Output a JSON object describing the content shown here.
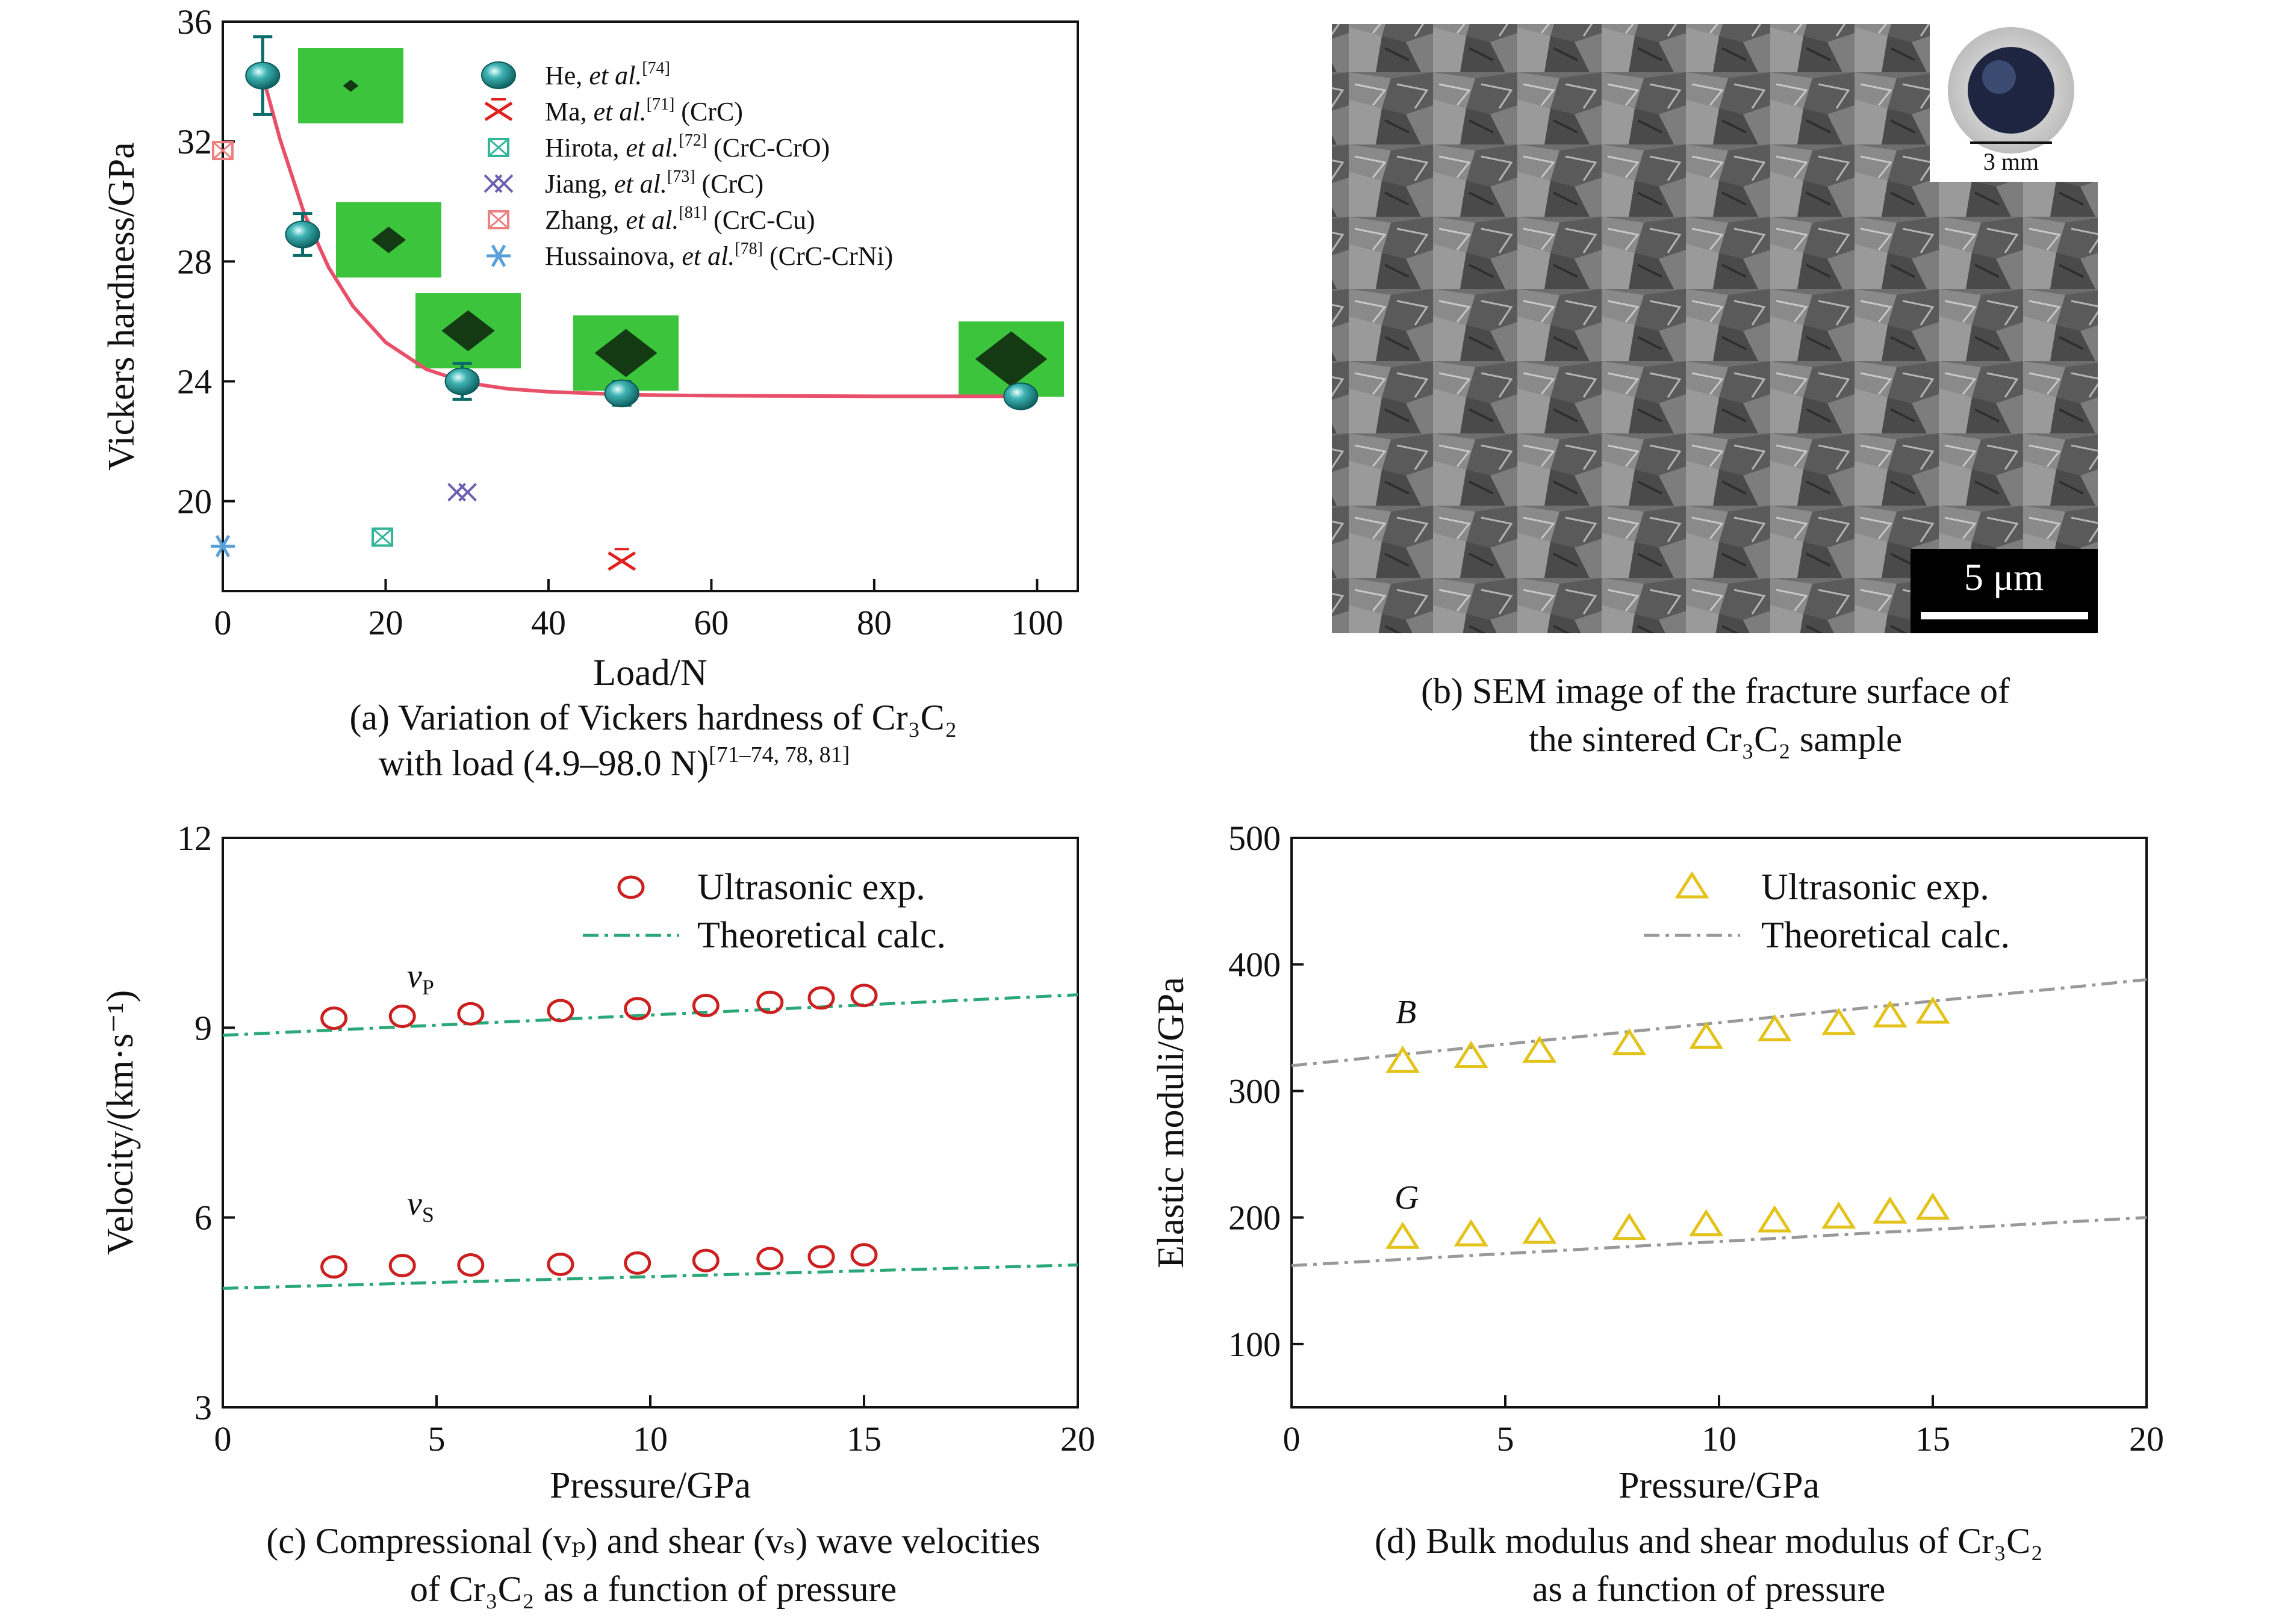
{
  "panel_a": {
    "caption": [
      "(a) Variation of Vickers hardness of Cr₃C₂",
      "with load (4.9–98.0 N)"
    ],
    "caption_ref": "[71–74, 78, 81]",
    "legend": [
      {
        "name": "He, ",
        "italic": "et al.",
        "ref": "[74]",
        "suffix": ""
      },
      {
        "name": "Ma, ",
        "italic": "et al.",
        "ref": "[71]",
        "suffix": " (CrC)"
      },
      {
        "name": "Hirota, ",
        "italic": "et al.",
        "ref": "[72]",
        "suffix": " (CrC-CrO)"
      },
      {
        "name": "Jiang, ",
        "italic": "et al.",
        "ref": "[73]",
        "suffix": " (CrC)"
      },
      {
        "name": "Zhang, ",
        "italic": "et al.",
        "ref": "[81]",
        "suffix": " (CrC-Cu)"
      },
      {
        "name": "Hussainova, ",
        "italic": "et al.",
        "ref": "[78]",
        "suffix": " (CrC-CrNi)"
      }
    ]
  },
  "panel_b": {
    "caption": [
      "(b) SEM image of the fracture surface of",
      "the sintered Cr₃C₂ sample"
    ],
    "scale_bar": "5 μm",
    "inset_label": "3 mm"
  },
  "panel_c": {
    "caption": [
      "(c) Compressional (vₚ) and shear (vₛ) wave velocities",
      "of Cr₃C₂ as a function of pressure"
    ],
    "legend": [
      "Ultrasonic exp.",
      "Theoretical calc."
    ],
    "label_vp": "vP",
    "label_vs": "vS"
  },
  "panel_d": {
    "caption": [
      "(d) Bulk modulus and shear modulus of Cr₃C₂",
      "as a function of pressure"
    ],
    "legend": [
      "Ultrasonic exp.",
      "Theoretical calc."
    ],
    "label_b": "B",
    "label_g": "G"
  },
  "chart_data": [
    {
      "type": "scatter",
      "xlabel": "Load/N",
      "ylabel": "Vickers hardness/GPa",
      "xlim": [
        0,
        105
      ],
      "ylim": [
        17,
        36
      ],
      "xticks": [
        0,
        20,
        40,
        60,
        80,
        100
      ],
      "yticks": [
        20,
        24,
        28,
        32,
        36
      ],
      "series": [
        {
          "name": "He, et al.[74]",
          "color": "#1a8c8c",
          "marker": "sphere",
          "x": [
            4.9,
            9.8,
            29.4,
            49.0,
            98.0
          ],
          "y": [
            34.2,
            28.9,
            24.0,
            23.6,
            23.5
          ],
          "err": [
            1.3,
            0.7,
            0.6,
            0.4,
            0.2
          ]
        },
        {
          "name": "Ma, et al.[71] (CrC)",
          "color": "#e0201e",
          "marker": "x",
          "x": [
            49.0
          ],
          "y": [
            18.0
          ]
        },
        {
          "name": "Hirota, et al.[72] (CrC-CrO)",
          "color": "#33b59a",
          "marker": "boxx",
          "x": [
            19.6
          ],
          "y": [
            18.8
          ]
        },
        {
          "name": "Jiang, et al.[73] (CrC)",
          "color": "#6a5fb0",
          "marker": "xx",
          "x": [
            29.4
          ],
          "y": [
            20.3
          ]
        },
        {
          "name": "Zhang, et al.[81] (CrC-Cu)",
          "color": "#ee7f7f",
          "marker": "boxx",
          "x": [
            0.0
          ],
          "y": [
            31.7
          ]
        },
        {
          "name": "Hussainova, et al.[78] (CrC-CrNi)",
          "color": "#5aa0d8",
          "marker": "star",
          "x": [
            0.0
          ],
          "y": [
            18.5
          ]
        }
      ],
      "fit": {
        "color": "#e8506a",
        "x": [
          4.9,
          7,
          10,
          13,
          16,
          20,
          25,
          30,
          35,
          40,
          50,
          60,
          70,
          80,
          90,
          98
        ],
        "y": [
          34.2,
          32.1,
          29.6,
          27.8,
          26.5,
          25.3,
          24.4,
          23.95,
          23.75,
          23.65,
          23.55,
          23.52,
          23.51,
          23.5,
          23.5,
          23.5
        ]
      }
    },
    {
      "type": "scatter",
      "xlabel": "Pressure/GPa",
      "ylabel": "Velocity/(km·s⁻¹)",
      "xlim": [
        0,
        20
      ],
      "ylim": [
        3,
        12
      ],
      "xticks": [
        0,
        5,
        10,
        15,
        20
      ],
      "yticks": [
        3,
        6,
        9,
        12
      ],
      "series": [
        {
          "name": "Ultrasonic exp.",
          "label": "vP",
          "color": "#cc1f1f",
          "marker": "circle",
          "x": [
            2.6,
            4.2,
            5.8,
            7.9,
            9.7,
            11.3,
            12.8,
            14.0,
            15.0
          ],
          "y": [
            9.15,
            9.18,
            9.22,
            9.27,
            9.3,
            9.35,
            9.4,
            9.47,
            9.51
          ]
        },
        {
          "name": "Ultrasonic exp.",
          "label": "vS",
          "color": "#cc1f1f",
          "marker": "circle",
          "x": [
            2.6,
            4.2,
            5.8,
            7.9,
            9.7,
            11.3,
            12.8,
            14.0,
            15.0
          ],
          "y": [
            5.22,
            5.24,
            5.25,
            5.26,
            5.28,
            5.32,
            5.35,
            5.38,
            5.41
          ]
        },
        {
          "name": "Theoretical calc.",
          "label": "vP",
          "color": "#2aa878",
          "marker": "dashdot",
          "x": [
            0,
            20
          ],
          "y": [
            8.88,
            9.52
          ]
        },
        {
          "name": "Theoretical calc.",
          "label": "vS",
          "color": "#2aa878",
          "marker": "dashdot",
          "x": [
            0,
            20
          ],
          "y": [
            4.88,
            5.25
          ]
        }
      ]
    },
    {
      "type": "scatter",
      "xlabel": "Pressure/GPa",
      "ylabel": "Elastic moduli/GPa",
      "xlim": [
        0,
        20
      ],
      "ylim": [
        50,
        500
      ],
      "xticks": [
        0,
        5,
        10,
        15,
        20
      ],
      "yticks": [
        100,
        200,
        300,
        400,
        500
      ],
      "series": [
        {
          "name": "Ultrasonic exp.",
          "label": "B",
          "color": "#e3c21a",
          "marker": "triangle",
          "x": [
            2.6,
            4.2,
            5.8,
            7.9,
            9.7,
            11.3,
            12.8,
            14.0,
            15.0
          ],
          "y": [
            323,
            327,
            331,
            337,
            342,
            348,
            353,
            359,
            362
          ]
        },
        {
          "name": "Ultrasonic exp.",
          "label": "G",
          "color": "#e3c21a",
          "marker": "triangle",
          "x": [
            2.6,
            4.2,
            5.8,
            7.9,
            9.7,
            11.3,
            12.8,
            14.0,
            15.0
          ],
          "y": [
            184,
            186,
            188,
            191,
            194,
            197,
            200,
            204,
            207
          ]
        },
        {
          "name": "Theoretical calc.",
          "label": "B",
          "color": "#999999",
          "marker": "dashdot",
          "x": [
            0,
            20
          ],
          "y": [
            320,
            388
          ]
        },
        {
          "name": "Theoretical calc.",
          "label": "G",
          "color": "#999999",
          "marker": "dashdot",
          "x": [
            0,
            20
          ],
          "y": [
            162,
            200
          ]
        }
      ]
    }
  ]
}
